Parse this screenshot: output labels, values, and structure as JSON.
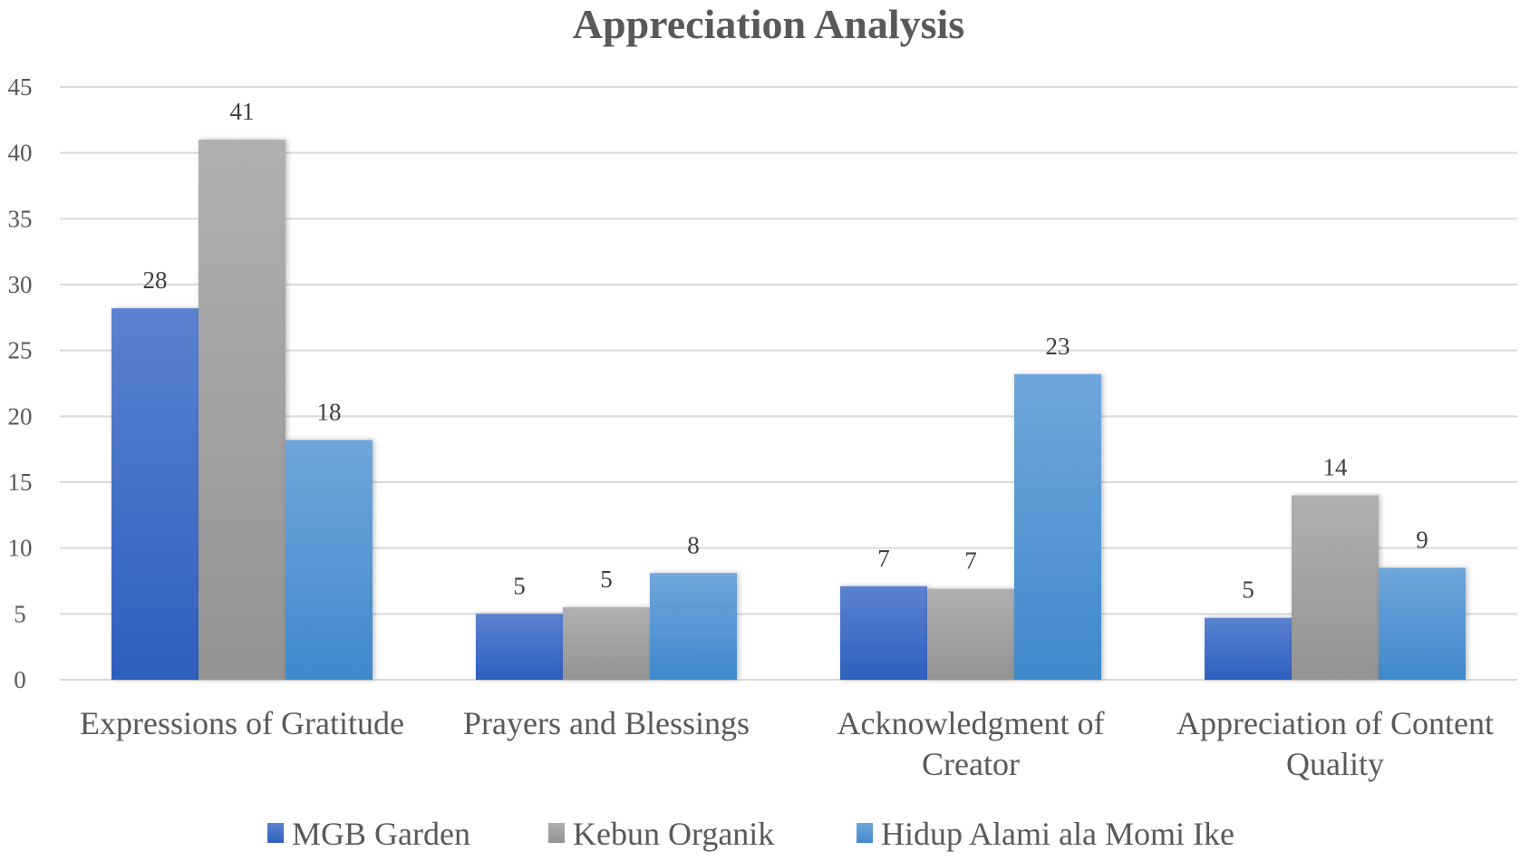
{
  "chart_data": {
    "type": "bar",
    "title": "Appreciation Analysis",
    "xlabel": "",
    "ylabel": "",
    "ylim": [
      0,
      45
    ],
    "yticks": [
      0,
      5,
      10,
      15,
      20,
      25,
      30,
      35,
      40,
      45
    ],
    "grid": true,
    "legend_position": "bottom",
    "categories": [
      [
        "Expressions of Gratitude"
      ],
      [
        "Prayers and Blessings"
      ],
      [
        "Acknowledgment of",
        "Creator"
      ],
      [
        "Appreciation of Content",
        "Quality"
      ]
    ],
    "series": [
      {
        "name": "MGB Garden",
        "color": "#3A68C4",
        "values": [
          28.2,
          5,
          7.1,
          4.7
        ],
        "labels": [
          "28",
          "5",
          "7",
          "5"
        ]
      },
      {
        "name": "Kebun Organik",
        "color": "#A0A0A0",
        "values": [
          41,
          5.5,
          6.9,
          14
        ],
        "labels": [
          "41",
          "5",
          "7",
          "14"
        ]
      },
      {
        "name": "Hidup Alami ala Momi Ike",
        "color": "#5A9AD8",
        "values": [
          18.2,
          8.1,
          23.2,
          8.5
        ],
        "labels": [
          "18",
          "8",
          "23",
          "9"
        ]
      }
    ]
  }
}
